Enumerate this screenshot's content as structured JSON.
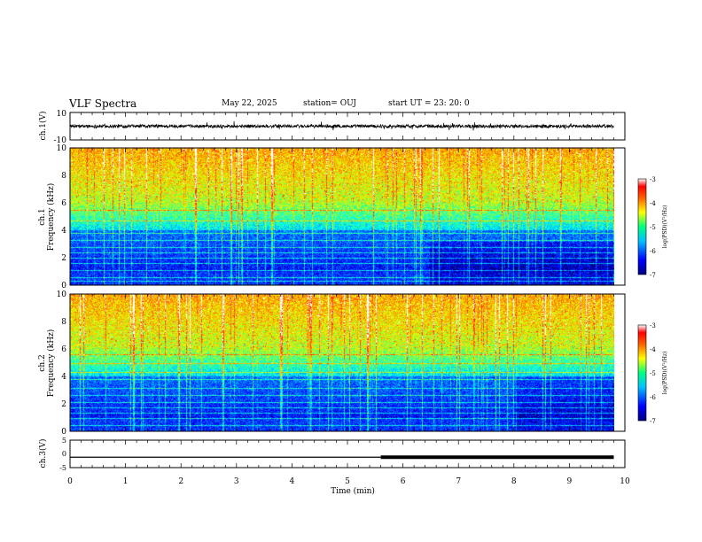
{
  "header": {
    "title": "VLF Spectra",
    "date": "May 22, 2025",
    "station": "station= OUJ",
    "start": "start  UT  =   23: 20: 0"
  },
  "chart_data": [
    {
      "type": "line",
      "name": "ch1-waveform",
      "ylabel": "ch.1(V)",
      "ylim": [
        -10,
        10
      ],
      "yticks": [
        "10",
        "-10"
      ],
      "xlim": [
        0,
        10
      ],
      "signal": {
        "baseline": 0,
        "noise_amplitude": 1.2,
        "spike_amplitude": 3,
        "data_end_min": 9.8
      }
    },
    {
      "type": "heatmap",
      "name": "ch1-spectrogram",
      "ylabel": "ch.1",
      "ylabel2": "Frequency  (kHz)",
      "ylim": [
        0,
        10
      ],
      "yticks": [
        "0",
        "2",
        "4",
        "6",
        "8",
        "10"
      ],
      "xlim": [
        0,
        10
      ],
      "data_end_min": 9.8,
      "colorbar": {
        "label": "log(PSD)(V²/Hz)",
        "range": [
          -7,
          -3
        ],
        "ticks": [
          "-3",
          "-4",
          "-5",
          "-6",
          "-7"
        ]
      }
    },
    {
      "type": "heatmap",
      "name": "ch2-spectrogram",
      "ylabel": "ch.2",
      "ylabel2": "Frequency  (kHz)",
      "ylim": [
        0,
        10
      ],
      "yticks": [
        "0",
        "2",
        "4",
        "6",
        "8",
        "10"
      ],
      "xlim": [
        0,
        10
      ],
      "data_end_min": 9.8,
      "colorbar": {
        "label": "log(PSD)(V²/Hz)",
        "range": [
          -7,
          -3
        ],
        "ticks": [
          "-3",
          "-4",
          "-5",
          "-6",
          "-7"
        ]
      }
    },
    {
      "type": "line",
      "name": "ch3-level",
      "ylabel": "ch.3(V)",
      "ylim": [
        -5,
        5
      ],
      "yticks": [
        "5",
        "0",
        "-5"
      ],
      "xlim": [
        0,
        10
      ],
      "xlabel": "Time  (min)",
      "xticks": [
        "0",
        "1",
        "2",
        "3",
        "4",
        "5",
        "6",
        "7",
        "8",
        "9",
        "10"
      ],
      "level": -1.2,
      "thick_from_min": 5.6,
      "data_end_min": 9.8
    }
  ],
  "colors": {
    "colormap": [
      "#00007f",
      "#0000ff",
      "#0080ff",
      "#00ffff",
      "#80ff80",
      "#ffff00",
      "#ff8000",
      "#ff0000",
      "#ffffff"
    ]
  }
}
